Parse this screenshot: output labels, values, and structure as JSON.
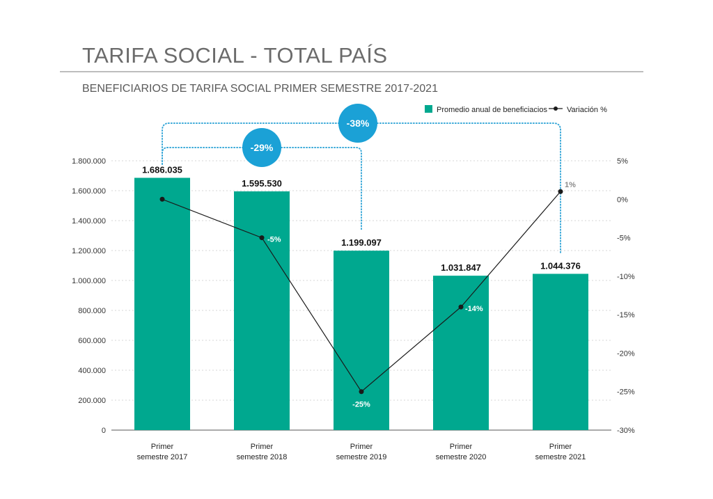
{
  "page": {
    "title": "TARIFA SOCIAL - TOTAL PAÍS",
    "subtitle": "BENEFICIARIOS DE TARIFA SOCIAL PRIMER SEMESTRE 2017-2021"
  },
  "colors": {
    "bar": "#00a88f",
    "line": "#1a1a1a",
    "bubble": "#1ba1d6",
    "bracket": "#39a8d8",
    "axis_text": "#333333",
    "grid": "#d5d5d5"
  },
  "chart_data": {
    "type": "bar",
    "categories": [
      [
        "Primer",
        "semestre 2017"
      ],
      [
        "Primer",
        "semestre 2018"
      ],
      [
        "Primer",
        "semestre 2019"
      ],
      [
        "Primer",
        "semestre 2020"
      ],
      [
        "Primer",
        "semestre 2021"
      ]
    ],
    "series": [
      {
        "name": "Promedio anual de beneficiacios",
        "type": "bar",
        "axis": "left",
        "values": [
          1686035,
          1595530,
          1199097,
          1031847,
          1044376
        ],
        "labels": [
          "1.686.035",
          "1.595.530",
          "1.199.097",
          "1.031.847",
          "1.044.376"
        ]
      },
      {
        "name": "Variación %",
        "type": "line",
        "axis": "right",
        "values": [
          0,
          -5,
          -25,
          -14,
          1
        ],
        "labels": [
          "",
          "-5%",
          "-25%",
          "-14%",
          "1%"
        ]
      }
    ],
    "left_axis": {
      "ylim": [
        0,
        1800000
      ],
      "ticks": [
        {
          "value": 0,
          "label": "0"
        },
        {
          "value": 200000,
          "label": "200.000"
        },
        {
          "value": 400000,
          "label": "400.000"
        },
        {
          "value": 600000,
          "label": "600.000"
        },
        {
          "value": 800000,
          "label": "800.000"
        },
        {
          "value": 1000000,
          "label": "1.000.000"
        },
        {
          "value": 1200000,
          "label": "1.200.000"
        },
        {
          "value": 1400000,
          "label": "1.400.000"
        },
        {
          "value": 1600000,
          "label": "1.600.000"
        },
        {
          "value": 1800000,
          "label": "1.800.000"
        }
      ]
    },
    "right_axis": {
      "ylim": [
        -30,
        5
      ],
      "ticks": [
        {
          "value": 5,
          "label": "5%"
        },
        {
          "value": 0,
          "label": "0%"
        },
        {
          "value": -5,
          "label": "-5%"
        },
        {
          "value": -10,
          "label": "-10%"
        },
        {
          "value": -15,
          "label": "-15%"
        },
        {
          "value": -20,
          "label": "-20%"
        },
        {
          "value": -25,
          "label": "-25%"
        },
        {
          "value": -30,
          "label": "-30%"
        }
      ]
    },
    "annotations": [
      {
        "label": "-29%",
        "from": 0,
        "to": 2
      },
      {
        "label": "-38%",
        "from": 0,
        "to": 4
      }
    ],
    "grid": true,
    "legend_position": "top-right"
  }
}
